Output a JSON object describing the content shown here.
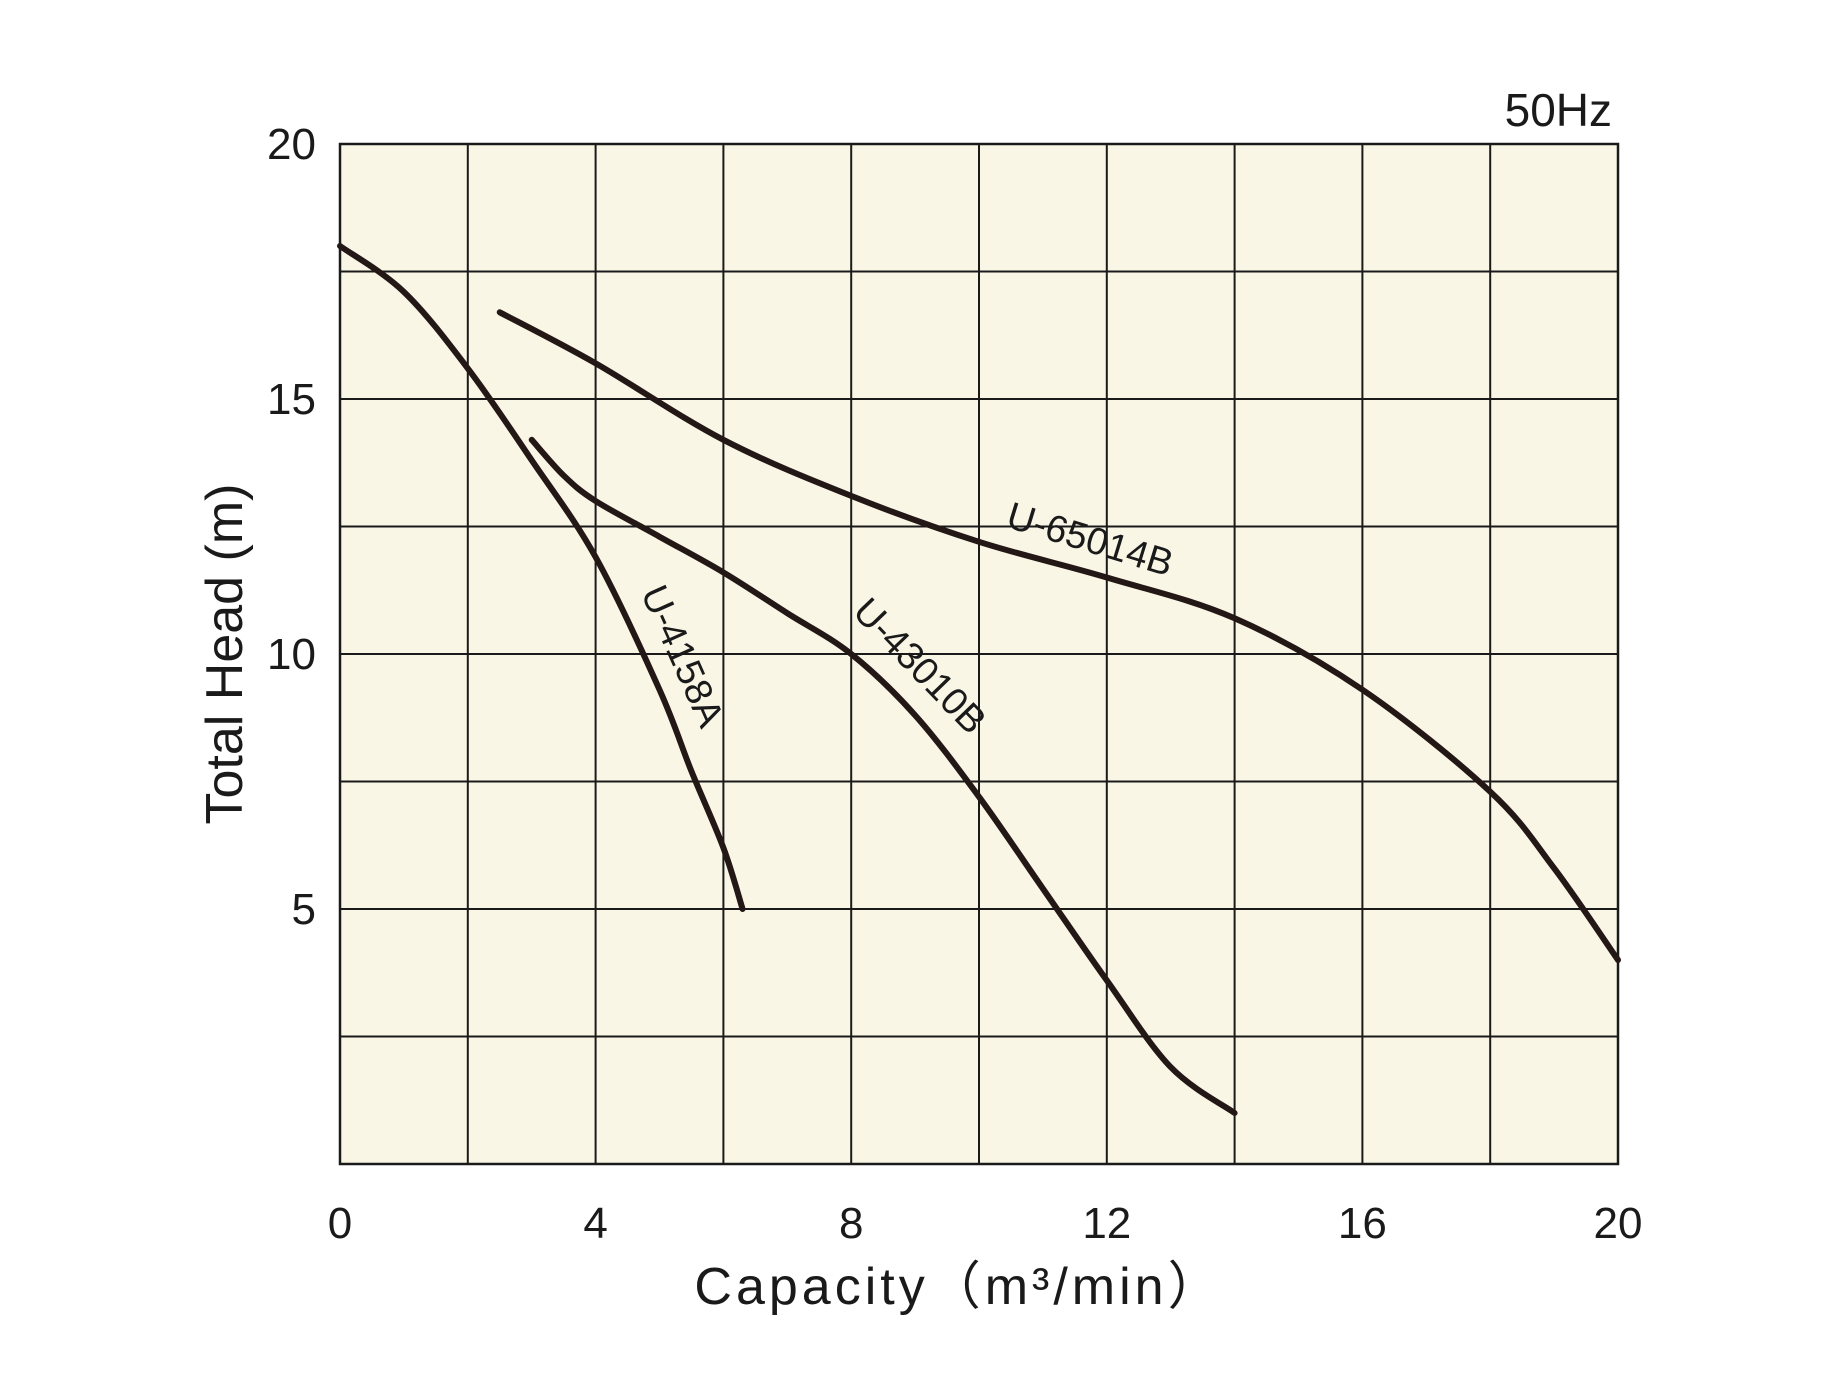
{
  "chart_data": {
    "type": "line",
    "note": "50Hz",
    "xlabel": "Capacity（m³/min）",
    "ylabel": "Total Head (m)",
    "xlim": [
      0,
      20
    ],
    "ylim": [
      0,
      20
    ],
    "x_ticks": [
      0,
      4,
      8,
      12,
      16,
      20
    ],
    "x_tick_labels": [
      "0",
      "4",
      "8",
      "12",
      "16",
      "20"
    ],
    "y_ticks": [
      5,
      10,
      15,
      20
    ],
    "y_tick_labels": [
      "5",
      "10",
      "15",
      "20"
    ],
    "grid": true,
    "grid_x_step": 2,
    "grid_y_step": 2.5,
    "colors": {
      "plot_bg": "#faf6e6",
      "grid": "#1a1a1a",
      "line": "#231815"
    },
    "series": [
      {
        "name": "U-4158A",
        "x": [
          0,
          1,
          2,
          3,
          4,
          5,
          5.5,
          6.0,
          6.3
        ],
        "y": [
          18,
          17.1,
          15.6,
          13.8,
          11.9,
          9.3,
          7.7,
          6.2,
          5.0
        ]
      },
      {
        "name": "U-43010B",
        "x": [
          3,
          3.5,
          4,
          5,
          6,
          7,
          8,
          9,
          10,
          11,
          12,
          13,
          14
        ],
        "y": [
          14.2,
          13.5,
          13.0,
          12.3,
          11.6,
          10.8,
          10.0,
          8.8,
          7.2,
          5.4,
          3.6,
          1.9,
          1.0
        ]
      },
      {
        "name": "U-65014B",
        "x": [
          2.5,
          4,
          6,
          8,
          10,
          12,
          14,
          16,
          18,
          19,
          20
        ],
        "y": [
          16.7,
          15.7,
          14.2,
          13.1,
          12.2,
          11.5,
          10.7,
          9.3,
          7.3,
          5.8,
          4.0
        ]
      }
    ]
  }
}
